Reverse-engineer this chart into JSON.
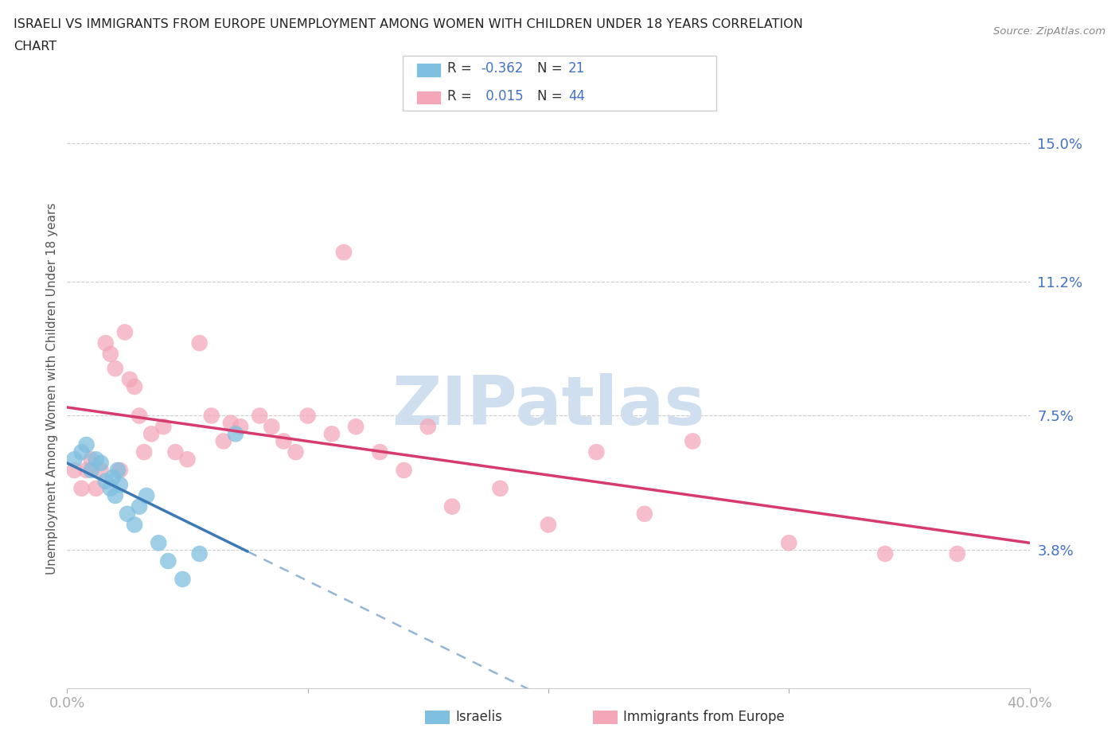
{
  "title_line1": "ISRAELI VS IMMIGRANTS FROM EUROPE UNEMPLOYMENT AMONG WOMEN WITH CHILDREN UNDER 18 YEARS CORRELATION",
  "title_line2": "CHART",
  "source": "Source: ZipAtlas.com",
  "ylabel": "Unemployment Among Women with Children Under 18 years",
  "xlim": [
    0,
    0.4
  ],
  "ylim": [
    0,
    0.165
  ],
  "xtick_positions": [
    0.0,
    0.1,
    0.2,
    0.3,
    0.4
  ],
  "xtick_labels": [
    "0.0%",
    "",
    "",
    "",
    "40.0%"
  ],
  "ytick_values": [
    0.038,
    0.075,
    0.112,
    0.15
  ],
  "ytick_labels": [
    "3.8%",
    "7.5%",
    "11.2%",
    "15.0%"
  ],
  "legend_r_israeli": "-0.362",
  "legend_n_israeli": "21",
  "legend_r_immigrants": "0.015",
  "legend_n_immigrants": "44",
  "color_israeli": "#7fbfdf",
  "color_immigrants": "#f4a7b9",
  "color_trend_israeli": "#3d7ab5",
  "color_trend_immigrants": "#d63b6e",
  "color_r_value": "#4472c4",
  "color_n_value": "#4472c4",
  "color_label_r": "#333333",
  "watermark_text": "ZIPatlas",
  "watermark_color": "#d0dff0",
  "israeli_x": [
    0.003,
    0.006,
    0.008,
    0.01,
    0.012,
    0.014,
    0.016,
    0.018,
    0.019,
    0.02,
    0.021,
    0.022,
    0.025,
    0.028,
    0.03,
    0.033,
    0.038,
    0.042,
    0.048,
    0.055,
    0.07
  ],
  "israeli_y": [
    0.063,
    0.065,
    0.067,
    0.06,
    0.063,
    0.062,
    0.057,
    0.055,
    0.058,
    0.053,
    0.06,
    0.056,
    0.048,
    0.045,
    0.05,
    0.053,
    0.04,
    0.035,
    0.03,
    0.037,
    0.07
  ],
  "immigrants_x": [
    0.003,
    0.006,
    0.008,
    0.01,
    0.012,
    0.014,
    0.016,
    0.018,
    0.02,
    0.022,
    0.024,
    0.026,
    0.028,
    0.03,
    0.032,
    0.035,
    0.04,
    0.045,
    0.05,
    0.055,
    0.06,
    0.065,
    0.068,
    0.072,
    0.08,
    0.085,
    0.09,
    0.095,
    0.1,
    0.11,
    0.115,
    0.12,
    0.13,
    0.14,
    0.15,
    0.16,
    0.18,
    0.2,
    0.22,
    0.24,
    0.26,
    0.3,
    0.34,
    0.37
  ],
  "immigrants_y": [
    0.06,
    0.055,
    0.06,
    0.063,
    0.055,
    0.06,
    0.095,
    0.092,
    0.088,
    0.06,
    0.098,
    0.085,
    0.083,
    0.075,
    0.065,
    0.07,
    0.072,
    0.065,
    0.063,
    0.095,
    0.075,
    0.068,
    0.073,
    0.072,
    0.075,
    0.072,
    0.068,
    0.065,
    0.075,
    0.07,
    0.12,
    0.072,
    0.065,
    0.06,
    0.072,
    0.05,
    0.055,
    0.045,
    0.065,
    0.048,
    0.068,
    0.04,
    0.037,
    0.037
  ]
}
